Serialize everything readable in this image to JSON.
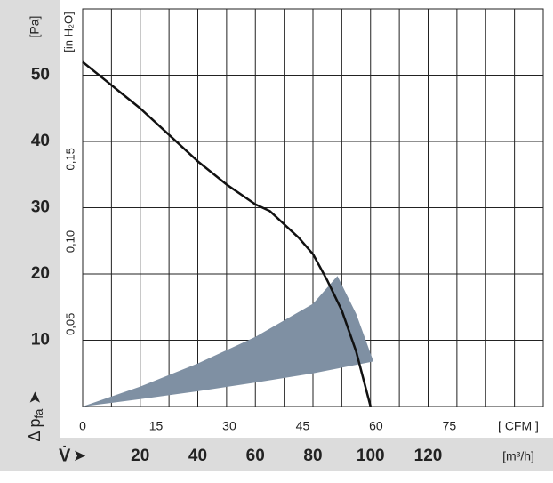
{
  "chart_data": {
    "type": "line",
    "y_label": "[Pa]",
    "y2_label": "[in H₂O]",
    "y_symbol": {
      "symbol": "Δ p",
      "subscript": "fa"
    },
    "x_symbol": "V̇",
    "x_label": "[m³/h]",
    "x2_label": "[ CFM ]",
    "xlim": [
      0,
      160
    ],
    "xticks": [
      20,
      40,
      60,
      80,
      100,
      120
    ],
    "xgrid": [
      10,
      20,
      30,
      40,
      50,
      60,
      70,
      80,
      90,
      100,
      110,
      120,
      130,
      140,
      150
    ],
    "x2lim": [
      0,
      94.2
    ],
    "x2ticks": [
      0,
      15,
      30,
      45,
      60,
      75
    ],
    "ylim": [
      0,
      60
    ],
    "yticks": [
      10,
      20,
      30,
      40,
      50
    ],
    "y2lim": [
      0,
      0.241
    ],
    "y2ticks": [
      {
        "value": 0.05,
        "label": "0,05"
      },
      {
        "value": 0.1,
        "label": "0,10"
      },
      {
        "value": 0.15,
        "label": "0,15"
      }
    ],
    "grid": true,
    "series": [
      {
        "color": "#111111",
        "x": [
          0,
          10,
          20,
          30,
          40,
          50,
          60,
          65,
          70,
          75,
          80,
          85,
          90,
          95,
          100
        ],
        "values": [
          52,
          48.5,
          45,
          41,
          37,
          33.5,
          30.5,
          29.5,
          27.5,
          25.5,
          23,
          19,
          14.5,
          8.3,
          0
        ]
      }
    ],
    "region": {
      "color": "#7f90a3",
      "x": [
        0,
        20,
        40,
        60,
        80,
        88.5,
        95,
        101,
        80,
        60,
        40,
        20,
        0
      ],
      "values": [
        0,
        3,
        6.5,
        10.5,
        15.5,
        19.7,
        14,
        6.8,
        5,
        3.6,
        2.3,
        1.1,
        0
      ]
    }
  }
}
